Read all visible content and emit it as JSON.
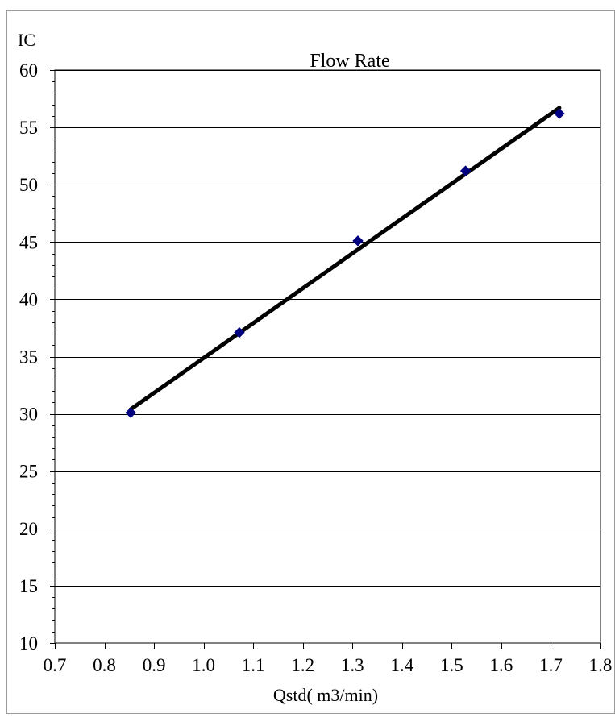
{
  "chart_data": {
    "type": "scatter",
    "title": "Flow Rate",
    "xlabel": "Qstd( m3/min)",
    "ylabel": "IC",
    "xlim": [
      0.7,
      1.8
    ],
    "ylim": [
      10,
      60
    ],
    "xticks": [
      0.7,
      0.8,
      0.9,
      1.0,
      1.1,
      1.2,
      1.3,
      1.4,
      1.5,
      1.6,
      1.7,
      1.8
    ],
    "xtick_labels": [
      "0.7",
      "0.8",
      "0.9",
      "1.0",
      "1.1",
      "1.2",
      "1.3",
      "1.4",
      "1.5",
      "1.6",
      "1.7",
      "1.8"
    ],
    "yticks": [
      10,
      15,
      20,
      25,
      30,
      35,
      40,
      45,
      50,
      55,
      60
    ],
    "ytick_labels": [
      "10",
      "15",
      "20",
      "25",
      "30",
      "35",
      "40",
      "45",
      "50",
      "55",
      "60"
    ],
    "grid": "horizontal",
    "legend": "none",
    "series": [
      {
        "marker": "diamond",
        "color": "#000080",
        "x": [
          0.853,
          1.072,
          1.311,
          1.528,
          1.717
        ],
        "y": [
          30.1,
          37.1,
          45.1,
          51.2,
          56.2
        ]
      }
    ],
    "trendline": {
      "color": "#000000",
      "x": [
        0.853,
        1.717
      ],
      "y": [
        30.4,
        56.7
      ]
    }
  }
}
